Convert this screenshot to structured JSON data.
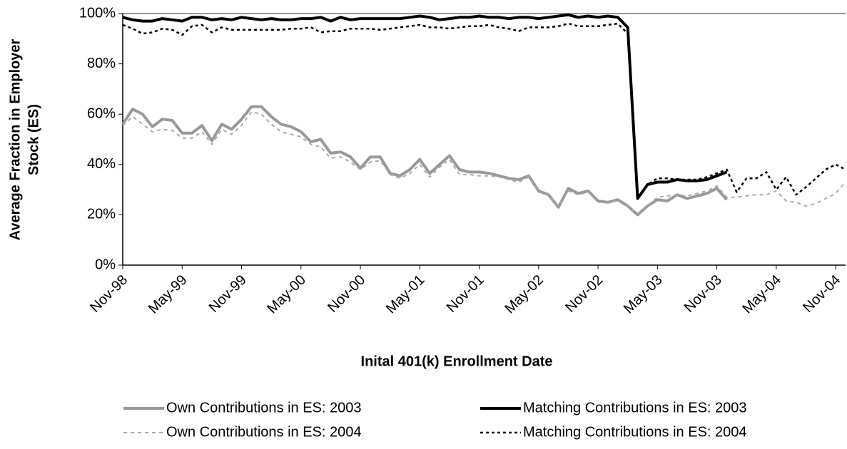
{
  "chart_data": {
    "type": "line",
    "ylabel": [
      "Average Fraction in Employer",
      "Stock (ES)"
    ],
    "xlabel": "Inital 401(k) Enrollment Date",
    "categories": [
      "Nov-98",
      null,
      null,
      null,
      null,
      null,
      "May-99",
      null,
      null,
      null,
      null,
      null,
      "Nov-99",
      null,
      null,
      null,
      null,
      null,
      "May-00",
      null,
      null,
      null,
      null,
      null,
      "Nov-00",
      null,
      null,
      null,
      null,
      null,
      "May-01",
      null,
      null,
      null,
      null,
      null,
      "Nov-01",
      null,
      null,
      null,
      null,
      null,
      "May-02",
      null,
      null,
      null,
      null,
      null,
      "Nov-02",
      null,
      null,
      null,
      null,
      null,
      "May-03",
      null,
      null,
      null,
      null,
      null,
      "Nov-03",
      null,
      null,
      null,
      null,
      null,
      "May-04",
      null,
      null,
      null,
      null,
      null,
      "Nov-04",
      null
    ],
    "ylim": [
      0,
      100
    ],
    "yticks": [
      {
        "value": 0,
        "label": "0%"
      },
      {
        "value": 20,
        "label": "20%"
      },
      {
        "value": 40,
        "label": "40%"
      },
      {
        "value": 60,
        "label": "60%"
      },
      {
        "value": 80,
        "label": "80%"
      },
      {
        "value": 100,
        "label": "100%"
      }
    ],
    "grid": false,
    "series": [
      {
        "name": "Own Contributions in ES: 2003",
        "color": "#999999",
        "line_style": "solid",
        "values": [
          56,
          62,
          60,
          55,
          58,
          57.5,
          52.5,
          52.5,
          55.5,
          49.5,
          56,
          54,
          58,
          63,
          63,
          59,
          56,
          55,
          53,
          49,
          50,
          44.5,
          45,
          43,
          38.5,
          43,
          43,
          36.5,
          35.5,
          38,
          42,
          36.5,
          40,
          43.5,
          38,
          37,
          37,
          36.5,
          35.5,
          34.5,
          34,
          35.5,
          29.5,
          28,
          23,
          30.5,
          28.5,
          29.5,
          25.5,
          25,
          26,
          23.5,
          20,
          23.5,
          26,
          25.5,
          28,
          26.5,
          27.5,
          28.5,
          30.5,
          26,
          null,
          null,
          null,
          null,
          null,
          null,
          null,
          null,
          null,
          null,
          null,
          null
        ]
      },
      {
        "name": "Matching Contributions in ES: 2003",
        "color": "#000000",
        "line_style": "solid",
        "values": [
          98.5,
          97.5,
          97,
          97,
          98,
          97.5,
          97,
          98.5,
          98.5,
          97.5,
          98,
          97.5,
          98.5,
          98,
          97.5,
          98,
          97.5,
          97.5,
          98,
          98,
          98.5,
          97,
          98.5,
          97.5,
          98,
          98,
          98,
          98,
          98,
          98.5,
          99,
          98.5,
          97.5,
          98,
          98.5,
          98.5,
          99,
          98.5,
          98.5,
          98,
          98.5,
          98.5,
          98,
          98.5,
          99,
          99.5,
          98.5,
          99,
          98.5,
          99,
          98.5,
          94.5,
          26.5,
          32,
          33,
          33,
          34,
          33.5,
          33.5,
          34,
          35.5,
          37,
          null,
          null,
          null,
          null,
          null,
          null,
          null,
          null,
          null,
          null,
          null,
          null
        ]
      },
      {
        "name": "Own Contributions in ES: 2004",
        "color": "#aaaaaa",
        "line_style": "dashed",
        "values": [
          55.5,
          59,
          56,
          53,
          54,
          53.5,
          50.5,
          50.5,
          53,
          48,
          54,
          52,
          55.5,
          61,
          60,
          56,
          53,
          52,
          51,
          48,
          47,
          42.5,
          43,
          41,
          38,
          41,
          41.5,
          36,
          34.5,
          36.5,
          40,
          35,
          39,
          42,
          36,
          36,
          35.5,
          35.5,
          35,
          34,
          33,
          35,
          29,
          28,
          23.5,
          29.5,
          28,
          29,
          25,
          25,
          25.5,
          23.5,
          20.5,
          23.5,
          27,
          27.5,
          28,
          27.5,
          28.5,
          29.5,
          31.5,
          27,
          27,
          27.5,
          28,
          28,
          29.5,
          25.5,
          25,
          23.5,
          24.5,
          26.5,
          28.5,
          33
        ]
      },
      {
        "name": "Matching Contributions in ES: 2004",
        "color": "#000000",
        "line_style": "dotted",
        "values": [
          95.5,
          94,
          92,
          92.5,
          94,
          93.5,
          91.5,
          95,
          95.5,
          92.5,
          94.5,
          93.5,
          93.5,
          93.5,
          93.5,
          93.5,
          93.5,
          94,
          94,
          94.5,
          92.5,
          93,
          93,
          94,
          94,
          94,
          93.5,
          94,
          94.5,
          95,
          95.5,
          94.5,
          94.5,
          94,
          94.5,
          95,
          95,
          95.5,
          94.5,
          94,
          93,
          94.5,
          94.5,
          94.5,
          95,
          96,
          95,
          95,
          95,
          95.5,
          96,
          92,
          27,
          32,
          34.5,
          34.5,
          34,
          34,
          34,
          35,
          36.5,
          38,
          29,
          34.5,
          34.5,
          37,
          30,
          35,
          28,
          31,
          34.5,
          38,
          40,
          38
        ]
      }
    ]
  }
}
